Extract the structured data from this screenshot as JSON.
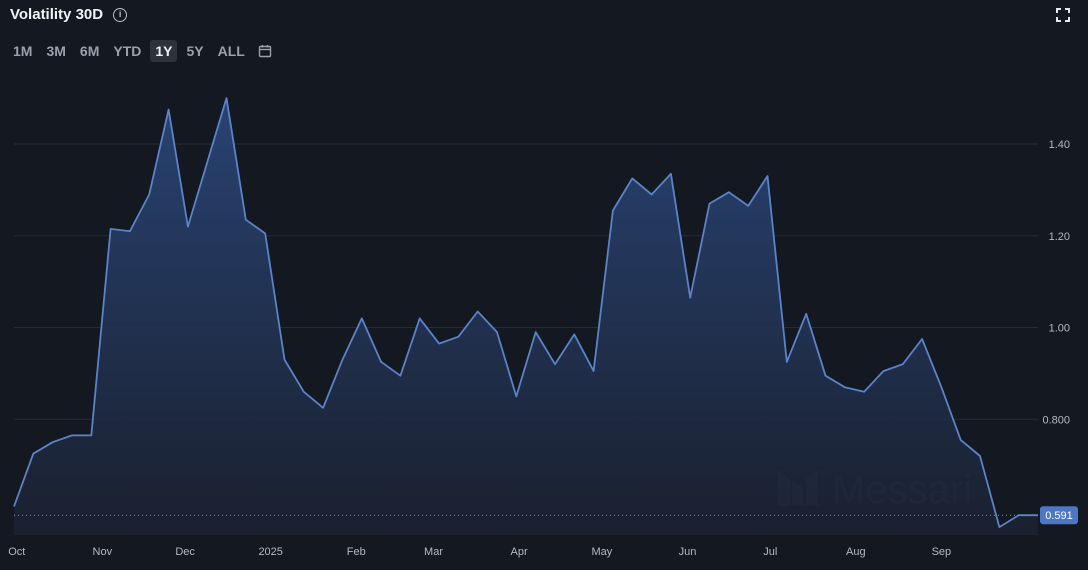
{
  "header": {
    "title": "Volatility 30D",
    "info_icon": "info-icon"
  },
  "ranges": [
    {
      "label": "1M",
      "active": false
    },
    {
      "label": "3M",
      "active": false
    },
    {
      "label": "6M",
      "active": false
    },
    {
      "label": "YTD",
      "active": false
    },
    {
      "label": "1Y",
      "active": true
    },
    {
      "label": "5Y",
      "active": false
    },
    {
      "label": "ALL",
      "active": false
    }
  ],
  "icons": {
    "calendar": "calendar-icon",
    "expand": "fullscreen-icon"
  },
  "watermark": {
    "text": "Messari"
  },
  "colors": {
    "line": "#5b83c8",
    "fill_top": "#2a4577",
    "background": "#141821",
    "label_bg": "#4d76c4"
  },
  "chart_data": {
    "type": "area",
    "title": "Volatility 30D",
    "x_ticks": [
      "Oct",
      "Nov",
      "Dec",
      "2025",
      "Feb",
      "Mar",
      "Apr",
      "May",
      "Jun",
      "Jul",
      "Aug",
      "Sep"
    ],
    "y_ticks": [
      "1.40",
      "1.20",
      "1.00",
      "0.800"
    ],
    "ylim": [
      0.55,
      1.57
    ],
    "grid": true,
    "current_value": "0.591",
    "series": [
      {
        "x": [
          "2024-09-30",
          "2024-10-07",
          "2024-10-14",
          "2024-10-21",
          "2024-10-28",
          "2024-11-04",
          "2024-11-11",
          "2024-11-18",
          "2024-11-25",
          "2024-12-02",
          "2024-12-09",
          "2024-12-16",
          "2024-12-23",
          "2024-12-30",
          "2025-01-06",
          "2025-01-13",
          "2025-01-20",
          "2025-01-27",
          "2025-02-03",
          "2025-02-10",
          "2025-02-17",
          "2025-02-24",
          "2025-03-03",
          "2025-03-10",
          "2025-03-17",
          "2025-03-24",
          "2025-03-31",
          "2025-04-07",
          "2025-04-14",
          "2025-04-21",
          "2025-04-28",
          "2025-05-05",
          "2025-05-12",
          "2025-05-19",
          "2025-05-26",
          "2025-06-02",
          "2025-06-09",
          "2025-06-16",
          "2025-06-23",
          "2025-06-30",
          "2025-07-07",
          "2025-07-14",
          "2025-07-21",
          "2025-07-28",
          "2025-08-04",
          "2025-08-11",
          "2025-08-18",
          "2025-08-25",
          "2025-09-01",
          "2025-09-08",
          "2025-09-15",
          "2025-09-22",
          "2025-09-29",
          "2025-10-06"
        ],
        "values": [
          0.61,
          0.725,
          0.75,
          0.765,
          0.765,
          1.215,
          1.21,
          1.29,
          1.475,
          1.22,
          1.36,
          1.5,
          1.235,
          1.205,
          0.93,
          0.86,
          0.825,
          0.93,
          1.02,
          0.925,
          0.895,
          1.02,
          0.965,
          0.98,
          1.035,
          0.99,
          0.85,
          0.99,
          0.92,
          0.985,
          0.905,
          1.255,
          1.325,
          1.29,
          1.335,
          1.065,
          1.27,
          1.295,
          1.265,
          1.33,
          0.925,
          1.03,
          0.895,
          0.87,
          0.86,
          0.905,
          0.92,
          0.975,
          0.87,
          0.755,
          0.72,
          0.565,
          0.591,
          0.591
        ]
      }
    ]
  }
}
